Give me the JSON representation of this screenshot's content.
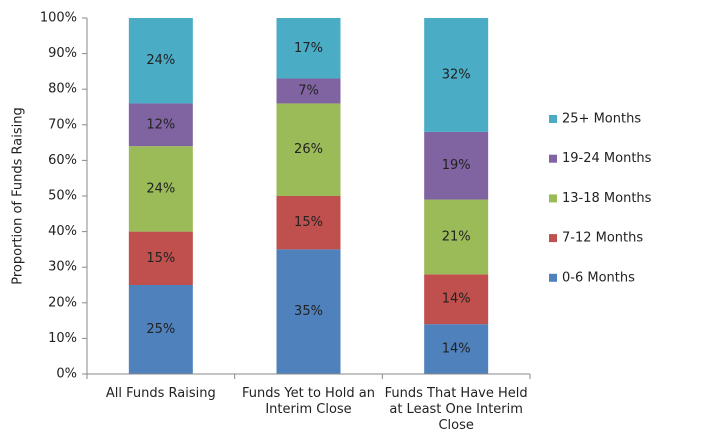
{
  "chart_data": {
    "type": "stacked_bar",
    "y_label": "Proportion of Funds Raising",
    "categories": [
      "All Funds Raising",
      "Funds Yet to Hold an Interim Close",
      "Funds That Have Held at Least One Interim Close"
    ],
    "series": [
      {
        "name": "0-6 Months",
        "color": "#4f81bd",
        "values": [
          25,
          35,
          14
        ],
        "value_labels": [
          "25%",
          "35%",
          "14%"
        ]
      },
      {
        "name": "7-12 Months",
        "color": "#c0504d",
        "values": [
          15,
          15,
          14
        ],
        "value_labels": [
          "15%",
          "15%",
          "14%"
        ]
      },
      {
        "name": "13-18 Months",
        "color": "#9bbb59",
        "values": [
          24,
          26,
          21
        ],
        "value_labels": [
          "24%",
          "26%",
          "21%"
        ]
      },
      {
        "name": "19-24 Months",
        "color": "#8064a2",
        "values": [
          12,
          7,
          19
        ],
        "value_labels": [
          "12%",
          "7%",
          "19%"
        ]
      },
      {
        "name": "25+ Months",
        "color": "#4bacc6",
        "values": [
          24,
          17,
          32
        ],
        "value_labels": [
          "24%",
          "17%",
          "32%"
        ]
      }
    ],
    "ylim": [
      0,
      100
    ],
    "yticks": [
      {
        "value": 0,
        "label": "0%"
      },
      {
        "value": 10,
        "label": "10%"
      },
      {
        "value": 20,
        "label": "20%"
      },
      {
        "value": 30,
        "label": "30%"
      },
      {
        "value": 40,
        "label": "40%"
      },
      {
        "value": 50,
        "label": "50%"
      },
      {
        "value": 60,
        "label": "60%"
      },
      {
        "value": 70,
        "label": "70%"
      },
      {
        "value": 80,
        "label": "80%"
      },
      {
        "value": 90,
        "label": "90%"
      },
      {
        "value": 100,
        "label": "100%"
      }
    ],
    "grid": false,
    "legend": "right"
  }
}
